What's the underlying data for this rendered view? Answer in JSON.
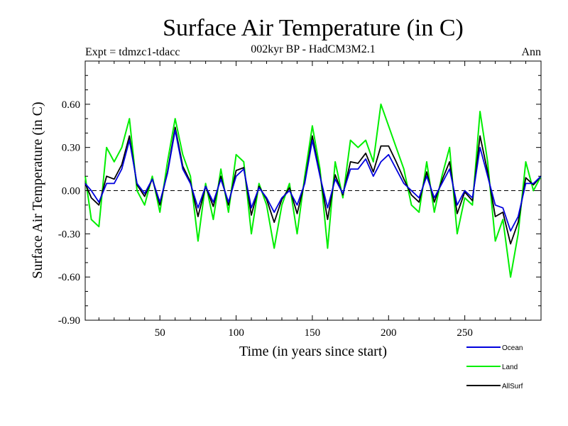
{
  "chart_data": {
    "type": "line",
    "title": "Surface Air Temperature (in C)",
    "subtitle": "002kyr BP - HadCM3M2.1",
    "expt_label": "Expt = tdmzc1-tdacc",
    "period_label": "Ann",
    "xlabel": "Time (in years since start)",
    "ylabel": "Surface Air Temperature (in C)",
    "xlim": [
      1,
      300
    ],
    "ylim": [
      -0.9,
      0.9
    ],
    "x_ticks": [
      50,
      100,
      150,
      200,
      250
    ],
    "x_tick_labels": [
      "50",
      "100",
      "150",
      "200",
      "250"
    ],
    "y_ticks": [
      -0.9,
      -0.6,
      -0.3,
      0.0,
      0.3,
      0.6
    ],
    "y_tick_labels": [
      "-0.90",
      "-0.60",
      "-0.30",
      "0.00",
      "0.30",
      "0.60"
    ],
    "zero_line": true,
    "legend_position": "bottom-right",
    "x": [
      1,
      5,
      10,
      15,
      20,
      25,
      30,
      35,
      40,
      45,
      50,
      55,
      60,
      65,
      70,
      75,
      80,
      85,
      90,
      95,
      100,
      105,
      110,
      115,
      120,
      125,
      130,
      135,
      140,
      145,
      150,
      155,
      160,
      165,
      170,
      175,
      180,
      185,
      190,
      195,
      200,
      205,
      210,
      215,
      220,
      225,
      230,
      235,
      240,
      245,
      250,
      255,
      260,
      265,
      270,
      275,
      280,
      285,
      290,
      295,
      300
    ],
    "series": [
      {
        "name": "Ocean",
        "color": "#0000dd",
        "values": [
          0.05,
          0.0,
          -0.08,
          0.05,
          0.05,
          0.15,
          0.35,
          0.05,
          -0.02,
          0.08,
          -0.08,
          0.12,
          0.42,
          0.15,
          0.05,
          -0.12,
          0.03,
          -0.08,
          0.08,
          -0.08,
          0.1,
          0.15,
          -0.12,
          0.02,
          -0.05,
          -0.15,
          -0.05,
          0.0,
          -0.1,
          0.05,
          0.35,
          0.1,
          -0.12,
          0.08,
          -0.02,
          0.15,
          0.15,
          0.22,
          0.1,
          0.2,
          0.25,
          0.15,
          0.05,
          0.0,
          -0.05,
          0.1,
          -0.05,
          0.05,
          0.15,
          -0.1,
          0.0,
          -0.05,
          0.3,
          0.1,
          -0.1,
          -0.12,
          -0.28,
          -0.18,
          0.05,
          0.05,
          0.1
        ]
      },
      {
        "name": "Land",
        "color": "#00ee00",
        "values": [
          0.1,
          -0.2,
          -0.25,
          0.3,
          0.2,
          0.3,
          0.5,
          0.0,
          -0.1,
          0.1,
          -0.15,
          0.2,
          0.5,
          0.25,
          0.1,
          -0.35,
          0.05,
          -0.2,
          0.15,
          -0.15,
          0.25,
          0.2,
          -0.3,
          0.05,
          -0.1,
          -0.4,
          -0.1,
          0.05,
          -0.3,
          0.1,
          0.45,
          0.15,
          -0.4,
          0.2,
          -0.05,
          0.35,
          0.3,
          0.35,
          0.2,
          0.6,
          0.45,
          0.3,
          0.15,
          -0.1,
          -0.15,
          0.2,
          -0.15,
          0.1,
          0.3,
          -0.3,
          -0.05,
          -0.1,
          0.55,
          0.2,
          -0.35,
          -0.2,
          -0.6,
          -0.3,
          0.2,
          0.0,
          0.1
        ]
      },
      {
        "name": "AllSurf",
        "color": "#000000",
        "values": [
          0.05,
          -0.05,
          -0.1,
          0.1,
          0.08,
          0.18,
          0.38,
          0.04,
          -0.04,
          0.08,
          -0.1,
          0.13,
          0.44,
          0.17,
          0.06,
          -0.18,
          0.03,
          -0.11,
          0.1,
          -0.1,
          0.14,
          0.16,
          -0.17,
          0.03,
          -0.06,
          -0.22,
          -0.06,
          0.02,
          -0.16,
          0.06,
          0.38,
          0.11,
          -0.2,
          0.11,
          -0.03,
          0.2,
          0.19,
          0.26,
          0.13,
          0.31,
          0.31,
          0.2,
          0.08,
          -0.03,
          -0.08,
          0.13,
          -0.08,
          0.07,
          0.2,
          -0.16,
          -0.01,
          -0.07,
          0.38,
          0.13,
          -0.18,
          -0.15,
          -0.37,
          -0.22,
          0.09,
          0.04,
          0.1
        ]
      }
    ]
  }
}
